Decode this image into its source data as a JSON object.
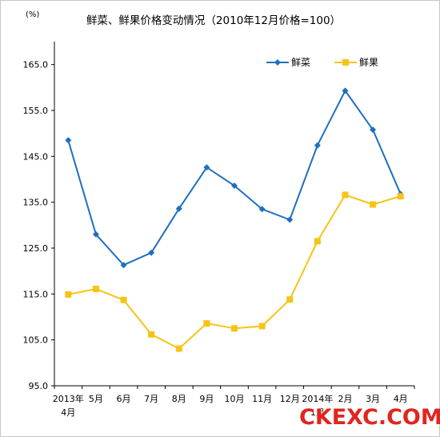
{
  "chart_data": {
    "type": "line",
    "title": "鲜菜、鲜果价格变动情况（2010年12月价格=100）",
    "unit_label": "(%)",
    "categories": [
      "2013年4月",
      "5月",
      "6月",
      "7月",
      "8月",
      "9月",
      "10月",
      "11月",
      "12月",
      "2014年1月",
      "2月",
      "3月",
      "4月"
    ],
    "x_tick_labels": [
      [
        "2013年",
        "4月"
      ],
      [
        "5月"
      ],
      [
        "6月"
      ],
      [
        "7月"
      ],
      [
        "8月"
      ],
      [
        "9月"
      ],
      [
        "10月"
      ],
      [
        "11月"
      ],
      [
        "12月"
      ],
      [
        "2014年",
        "1月"
      ],
      [
        "2月"
      ],
      [
        "3月"
      ],
      [
        "4月"
      ]
    ],
    "ylim": [
      95,
      170
    ],
    "y_ticks": [
      "95.0",
      "105.0",
      "115.0",
      "125.0",
      "135.0",
      "145.0",
      "155.0",
      "165.0"
    ],
    "y_tick_values": [
      95,
      105,
      115,
      125,
      135,
      145,
      155,
      165
    ],
    "legend_position": "top-right",
    "series": [
      {
        "name": "鲜菜",
        "color": "#1f6fc0",
        "marker": "diamond",
        "values": [
          148.5,
          128,
          121.3,
          124,
          133.6,
          142.6,
          138.6,
          133.5,
          131.2,
          147.4,
          159.3,
          150.8,
          136.8
        ]
      },
      {
        "name": "鲜果",
        "color": "#f5c417",
        "marker": "square",
        "values": [
          114.9,
          116.1,
          113.7,
          106.2,
          103.1,
          108.6,
          107.5,
          108,
          113.8,
          126.5,
          136.6,
          134.5,
          136.3
        ]
      }
    ]
  },
  "watermark": "CKEXC.COM"
}
